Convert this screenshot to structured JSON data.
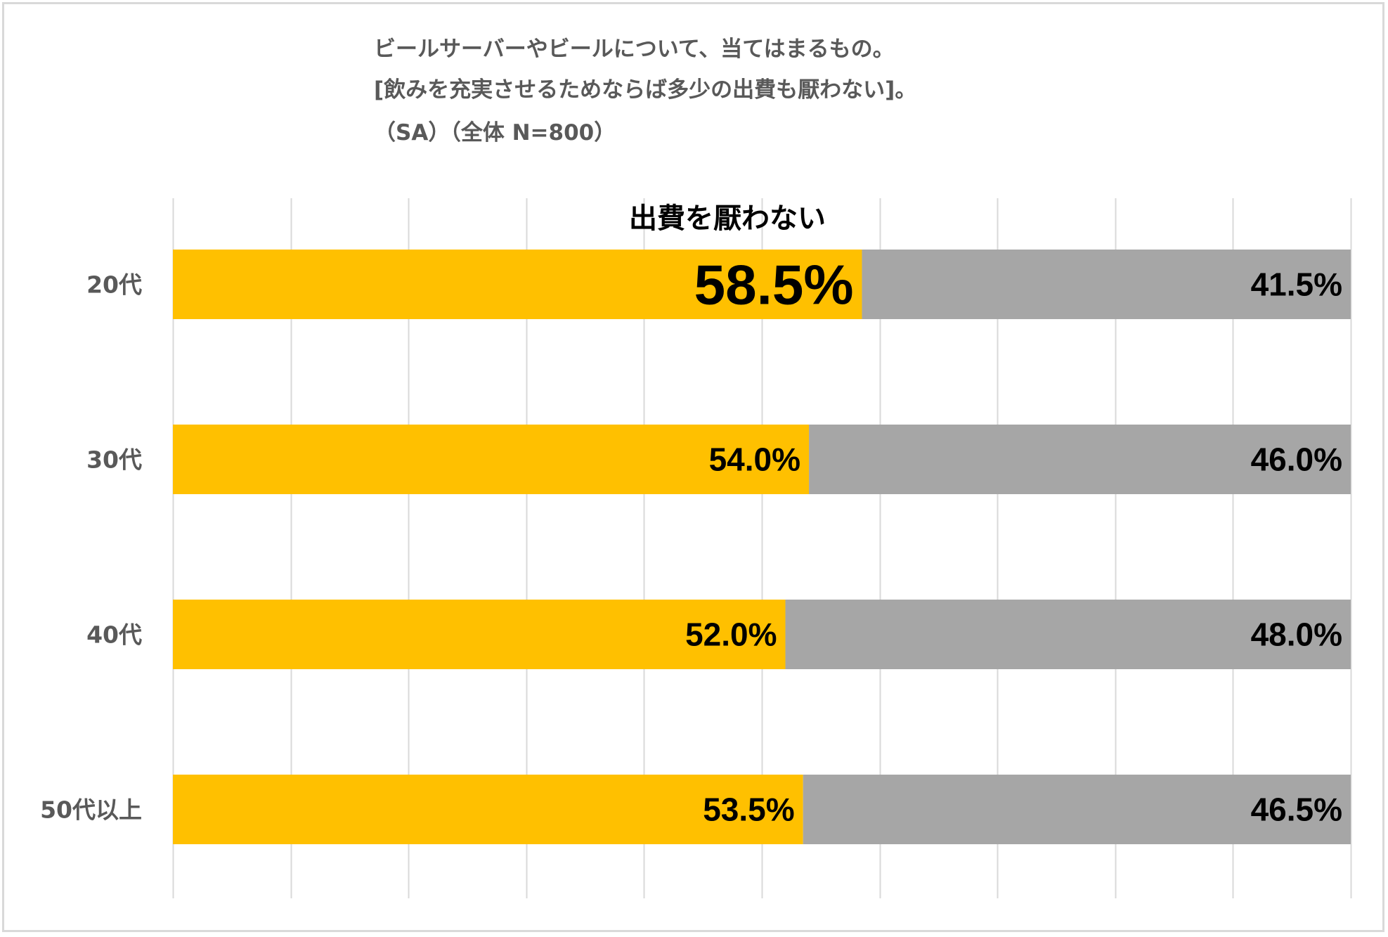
{
  "title_lines": [
    "ビールサーバーやビールについて、当てはまるもの。",
    "[飲みを充実させるためならば多少の出費も厭わない]。",
    "（SA）（全体 N=800）"
  ],
  "chart_data": {
    "type": "bar",
    "orientation": "horizontal",
    "stacked": true,
    "percent_scale": [
      0,
      100
    ],
    "gridlines": "vertical",
    "categories": [
      "20代",
      "30代",
      "40代",
      "50代以上"
    ],
    "series": [
      {
        "name": "出費を厭わない",
        "color": "#ffc000",
        "values": [
          58.5,
          54.0,
          52.0,
          53.5
        ],
        "labels": [
          "58.5%",
          "54.0%",
          "52.0%",
          "53.5%"
        ]
      },
      {
        "name": "",
        "color": "#a6a6a6",
        "values": [
          41.5,
          46.0,
          48.0,
          46.5
        ],
        "labels": [
          "41.5%",
          "46.0%",
          "48.0%",
          "46.5%"
        ]
      }
    ],
    "series_label_text": "出費を厭わない"
  },
  "colors": {
    "grid": "#d9d9d9",
    "frame": "#d9d9d9",
    "category_text": "#595959",
    "title_text": "#595959"
  }
}
